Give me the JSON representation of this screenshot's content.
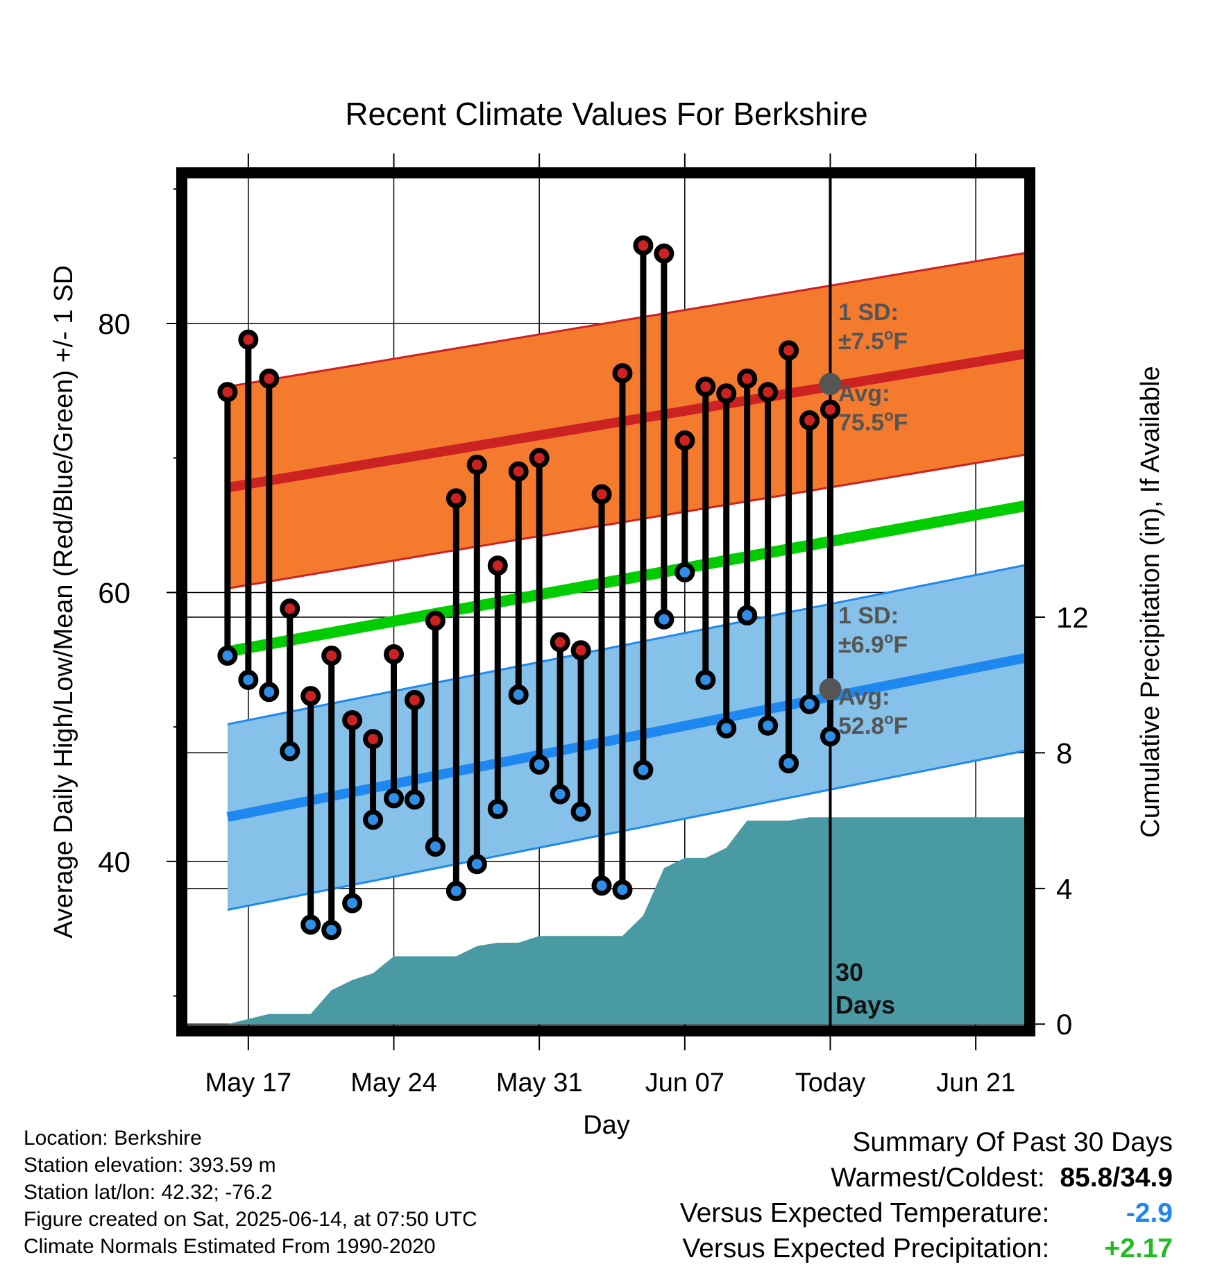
{
  "colors": {
    "high_point": "#cc2222",
    "low_point": "#2f8fe6",
    "high_band": "#f47a2e",
    "high_avg_line": "#cc2222",
    "low_band": "#85c1e8",
    "low_avg_line": "#1e88f0",
    "mean_line": "#00cc00",
    "precip_area": "#4a9aa4",
    "today_marker": "#555555",
    "annotation": "#555555",
    "summary_temp": "#1e88f0",
    "summary_precip": "#22bb22"
  },
  "chart_data": {
    "type": "line",
    "title": "Recent Climate Values For Berkshire",
    "xlabel": "Day",
    "ylabel": "Average Daily High/Low/Mean (Red/Blue/Green) +/- 1 SD",
    "ylabel_right": "Cumulative Precipitation (in), If Available",
    "x_ticks": [
      "May 17",
      "May 24",
      "May 31",
      "Jun 07",
      "Today",
      "Jun 21"
    ],
    "x_tick_days": [
      17,
      24,
      31,
      38,
      45,
      52
    ],
    "xlim": [
      13.8,
      54.6
    ],
    "ylim": [
      27.4,
      91.2
    ],
    "y_ticks": [
      40,
      60,
      80
    ],
    "y_minor_ticks": [
      30,
      50,
      70,
      90
    ],
    "y2lim": [
      -0.2,
      25.1
    ],
    "y2_ticks": [
      0,
      4,
      8,
      12
    ],
    "grid": true,
    "days": [
      16,
      17,
      18,
      19,
      20,
      21,
      22,
      23,
      24,
      25,
      26,
      27,
      28,
      29,
      30,
      31,
      32,
      33,
      34,
      35,
      36,
      37,
      38,
      39,
      40,
      41,
      42,
      43,
      44,
      45
    ],
    "series": [
      {
        "name": "High",
        "values": [
          74.9,
          78.8,
          75.9,
          58.8,
          52.3,
          55.3,
          50.5,
          49.1,
          55.4,
          52.0,
          57.9,
          67.0,
          69.5,
          62.0,
          69.0,
          70.0,
          56.3,
          55.7,
          67.3,
          76.3,
          85.8,
          85.2,
          71.3,
          75.3,
          74.8,
          75.9,
          74.9,
          78.0,
          72.8,
          73.6
        ]
      },
      {
        "name": "Low",
        "values": [
          55.3,
          53.5,
          52.6,
          48.2,
          35.3,
          34.9,
          36.9,
          43.1,
          44.7,
          44.6,
          41.1,
          37.8,
          39.8,
          43.9,
          52.4,
          47.2,
          45.0,
          43.7,
          38.2,
          37.9,
          46.8,
          58.0,
          61.5,
          53.5,
          49.9,
          58.3,
          50.1,
          47.3,
          51.7,
          49.3
        ]
      },
      {
        "name": "Avg High",
        "start": [
          16,
          67.8
        ],
        "end": [
          54.6,
          77.8
        ]
      },
      {
        "name": "Avg Low",
        "start": [
          16,
          43.3
        ],
        "end": [
          54.6,
          55.2
        ]
      },
      {
        "name": "Mean",
        "start": [
          16,
          55.6
        ],
        "end": [
          54.6,
          66.5
        ]
      },
      {
        "name": "Precipitation",
        "x": [
          16.0,
          18.0,
          19.0,
          20.0,
          21.0,
          22.0,
          23.0,
          24.0,
          25.0,
          27.0,
          28.0,
          29.0,
          30.0,
          31.0,
          32.0,
          35.0,
          36.0,
          37.0,
          38.0,
          39.0,
          40.0,
          41.0,
          42.0,
          43.0,
          44.0,
          45.0,
          54.6
        ],
        "values": [
          0.0,
          0.3,
          0.3,
          0.3,
          1.0,
          1.3,
          1.5,
          2.0,
          2.0,
          2.0,
          2.3,
          2.4,
          2.4,
          2.6,
          2.6,
          2.6,
          3.2,
          4.6,
          4.9,
          4.9,
          5.2,
          6.0,
          6.0,
          6.0,
          6.1,
          6.1,
          6.1
        ]
      }
    ],
    "high_sd": 7.5,
    "low_sd": 6.9,
    "today_avg_high": 75.5,
    "today_avg_low": 52.8,
    "annotations": {
      "high_sd_line1": "1 SD:",
      "high_sd_line2": "±7.5",
      "high_sd_unit": "o",
      "high_sd_f": "F",
      "high_avg_line1": "Avg:",
      "high_avg_line2": "75.5",
      "high_avg_unit": "o",
      "high_avg_f": "F",
      "low_sd_line1": "1 SD:",
      "low_sd_line2": "±6.9",
      "low_sd_unit": "o",
      "low_sd_f": "F",
      "low_avg_line1": "Avg:",
      "low_avg_line2": "52.8",
      "low_avg_unit": "o",
      "low_avg_f": "F",
      "days_line1": "30",
      "days_line2": "Days"
    }
  },
  "info": {
    "location": "Location: Berkshire",
    "elevation": "Station elevation: 393.59 m",
    "latlon": "Station lat/lon: 42.32; -76.2",
    "created": "Figure created on Sat, 2025-06-14, at 07:50 UTC",
    "normals": "Climate Normals Estimated From 1990-2020"
  },
  "summary": {
    "title": "Summary Of Past 30 Days",
    "warmest_label": "Warmest/Coldest:",
    "warmest_value": "85.8/34.9",
    "temp_label": "Versus Expected Temperature:",
    "temp_value": "-2.9",
    "precip_label": "Versus Expected Precipitation:",
    "precip_value": "+2.17"
  }
}
